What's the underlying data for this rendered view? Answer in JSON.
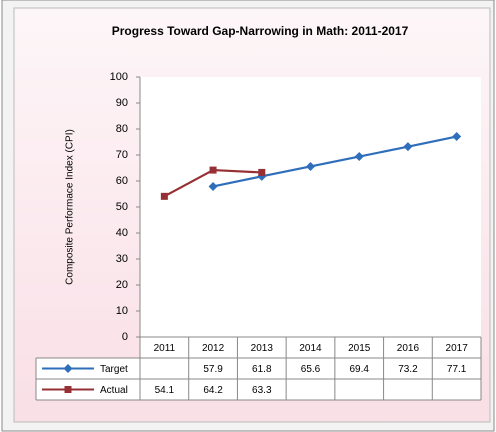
{
  "chart_data": {
    "type": "line",
    "title": "Progress Toward Gap-Narrowing in Math: 2011-2017",
    "y_label": "Composite Performace Index (CPI)",
    "categories": [
      "2011",
      "2012",
      "2013",
      "2014",
      "2015",
      "2016",
      "2017"
    ],
    "series": [
      {
        "name": "Target",
        "color": "#2f6eba",
        "marker": "diamond",
        "values": [
          null,
          57.9,
          61.8,
          65.6,
          69.4,
          73.2,
          77.1
        ]
      },
      {
        "name": "Actual",
        "color": "#963034",
        "marker": "square",
        "values": [
          54.1,
          64.2,
          63.3,
          null,
          null,
          null,
          null
        ]
      }
    ],
    "ylim": [
      0,
      100
    ],
    "yticks": [
      0,
      10,
      20,
      30,
      40,
      50,
      60,
      70,
      80,
      90,
      100
    ],
    "grid": false
  }
}
